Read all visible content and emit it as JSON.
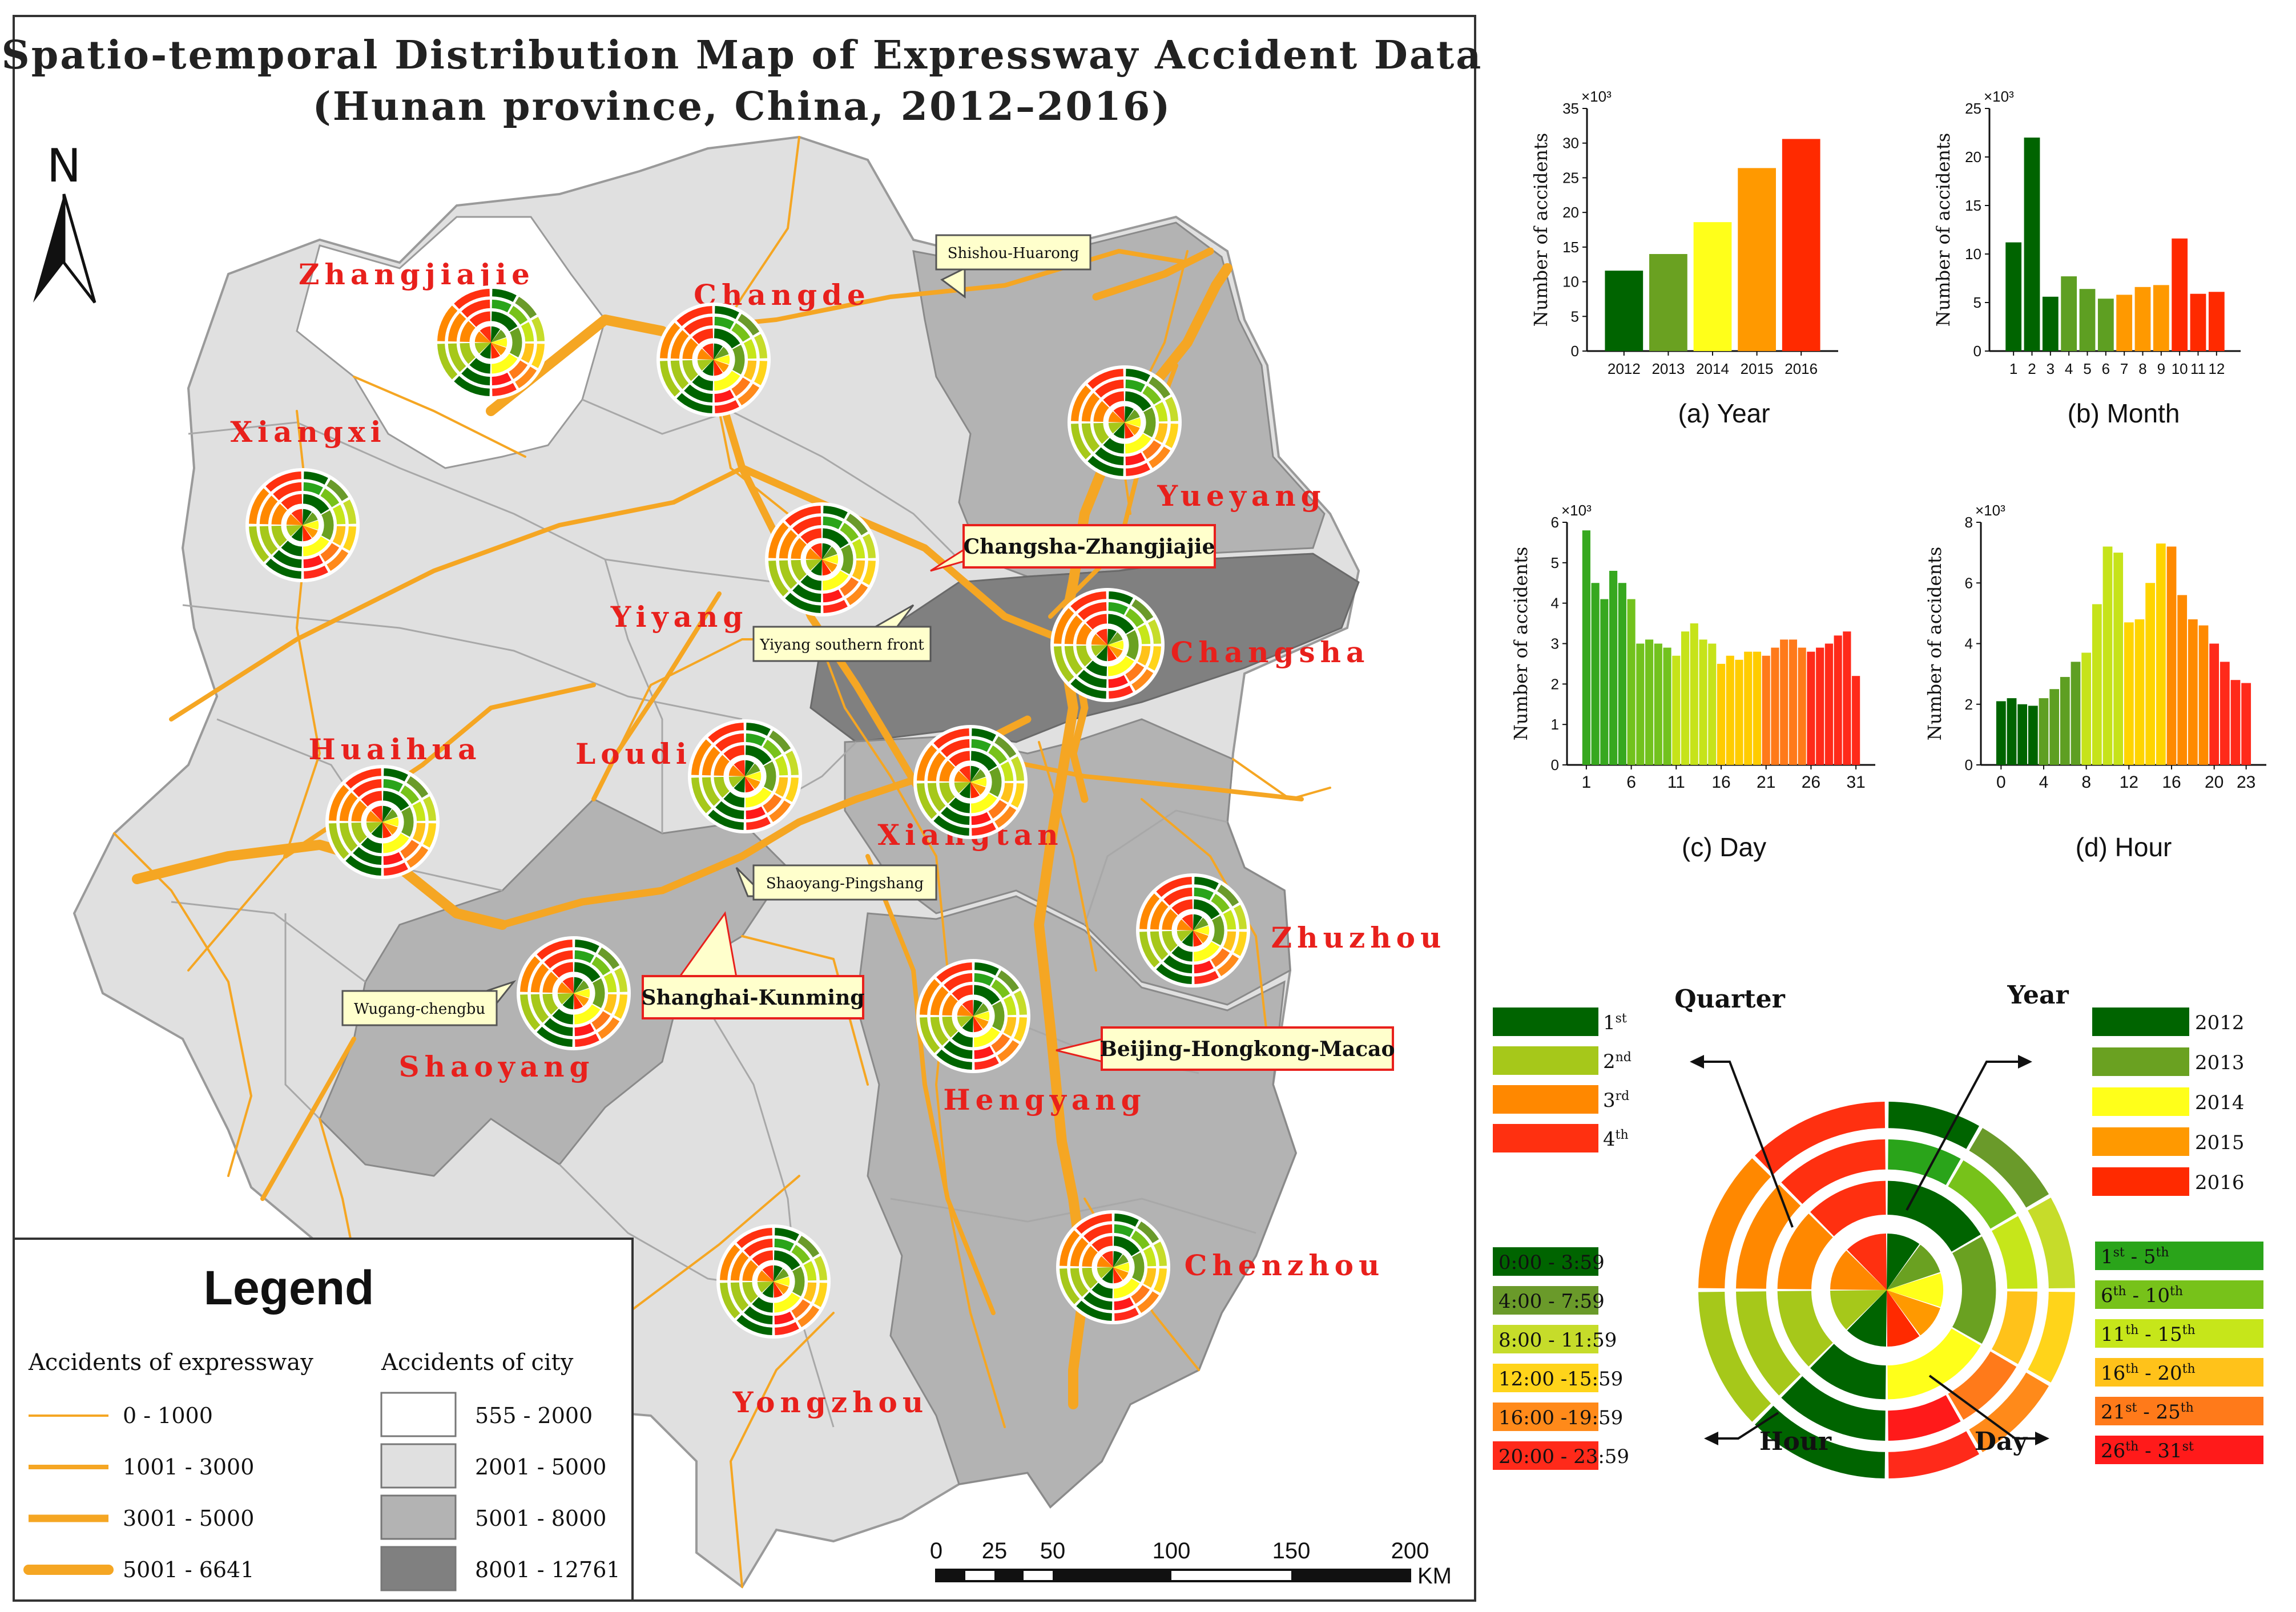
{
  "title": {
    "line1": "Spatio-temporal Distribution Map of Expressway Accident Data",
    "line2": "(Hunan province, China, 2012–2016)"
  },
  "north": "N",
  "cities": [
    {
      "name": "Zhangjiajie"
    },
    {
      "name": "Changde"
    },
    {
      "name": "Yueyang"
    },
    {
      "name": "Xiangxi"
    },
    {
      "name": "Yiyang"
    },
    {
      "name": "Changsha"
    },
    {
      "name": "Huaihua"
    },
    {
      "name": "Loudi"
    },
    {
      "name": "Xiangtan"
    },
    {
      "name": "Zhuzhou"
    },
    {
      "name": "Shaoyang"
    },
    {
      "name": "Hengyang"
    },
    {
      "name": "Chenzhou"
    },
    {
      "name": "Yongzhou"
    }
  ],
  "road_callouts": [
    {
      "label": "Shishou-Huarong",
      "style": "minor"
    },
    {
      "label": "Changsha-Zhangjiajie",
      "style": "major"
    },
    {
      "label": "Yiyang southern front",
      "style": "minor"
    },
    {
      "label": "Shaoyang-Pingshang",
      "style": "minor"
    },
    {
      "label": "Shanghai-Kunming",
      "style": "major"
    },
    {
      "label": "Wugang-chengbu",
      "style": "minor"
    },
    {
      "label": "Beijing-Hongkong-Macao",
      "style": "major"
    }
  ],
  "legend": {
    "title": "Legend",
    "expressway_title": "Accidents of expressway",
    "expressway": [
      {
        "label": "0 - 1000",
        "level": 1
      },
      {
        "label": "1001 - 3000",
        "level": 2
      },
      {
        "label": "3001 - 5000",
        "level": 3
      },
      {
        "label": "5001 - 6641",
        "level": 4
      }
    ],
    "city_title": "Accidents of city",
    "city": [
      {
        "label": "555 - 2000",
        "color": "#ffffff"
      },
      {
        "label": "2001 - 5000",
        "color": "#e0e0e0"
      },
      {
        "label": "5001 - 8000",
        "color": "#b3b3b3"
      },
      {
        "label": "8001 - 12761",
        "color": "#808080"
      }
    ]
  },
  "scale_bar": {
    "ticks": [
      "0",
      "25",
      "50",
      "100",
      "150",
      "200"
    ],
    "unit": "KM"
  },
  "colors": {
    "road": "#f5a623",
    "city_label": "#e8201c",
    "years": [
      "#006400",
      "#6aa121",
      "#ffff1a",
      "#ff9900",
      "#ff2a00"
    ]
  },
  "chart_data": [
    {
      "type": "bar",
      "caption": "(a) Year",
      "ylabel": "Number of accidents",
      "multiplier": "×10³",
      "ylim": [
        0,
        35
      ],
      "yticks": [
        0,
        5,
        10,
        15,
        20,
        25,
        30,
        35
      ],
      "categories": [
        "2012",
        "2013",
        "2014",
        "2015",
        "2016"
      ],
      "xtick_labels": [
        "2012",
        "2013",
        "2014",
        "2015",
        "2016"
      ],
      "values": [
        11.6,
        14.0,
        18.6,
        26.4,
        30.6
      ],
      "colors": [
        "#006400",
        "#6aa121",
        "#ffff1a",
        "#ff9900",
        "#ff2a00"
      ]
    },
    {
      "type": "bar",
      "caption": "(b) Month",
      "ylabel": "Number of accidents",
      "multiplier": "×10³",
      "ylim": [
        0,
        25
      ],
      "yticks": [
        0,
        5,
        10,
        15,
        20,
        25
      ],
      "categories": [
        "1",
        "2",
        "3",
        "4",
        "5",
        "6",
        "7",
        "8",
        "9",
        "10",
        "11",
        "12"
      ],
      "xtick_labels": [
        "1",
        "2",
        "3",
        "4",
        "5",
        "6",
        "7",
        "8",
        "9",
        "10",
        "11",
        "12"
      ],
      "values": [
        11.2,
        22.0,
        5.6,
        7.7,
        6.4,
        5.4,
        5.8,
        6.6,
        6.8,
        11.6,
        5.9,
        6.1
      ],
      "colors": [
        "#006400",
        "#006400",
        "#006400",
        "#5e9f22",
        "#5e9f22",
        "#5e9f22",
        "#ff9900",
        "#ff9900",
        "#ff9900",
        "#ff2a00",
        "#ff2a00",
        "#ff2a00"
      ]
    },
    {
      "type": "bar",
      "caption": "(c) Day",
      "ylabel": "Number of accidents",
      "multiplier": "×10³",
      "ylim": [
        0,
        6
      ],
      "yticks": [
        0,
        1,
        2,
        3,
        4,
        5,
        6
      ],
      "categories": [
        "1",
        "2",
        "3",
        "4",
        "5",
        "6",
        "7",
        "8",
        "9",
        "10",
        "11",
        "12",
        "13",
        "14",
        "15",
        "16",
        "17",
        "18",
        "19",
        "20",
        "21",
        "22",
        "23",
        "24",
        "25",
        "26",
        "27",
        "28",
        "29",
        "30",
        "31"
      ],
      "xtick_labels": [
        "1",
        "6",
        "11",
        "16",
        "21",
        "26",
        "31"
      ],
      "values": [
        5.8,
        4.5,
        4.1,
        4.8,
        4.5,
        4.1,
        3.0,
        3.1,
        3.0,
        2.9,
        2.7,
        3.3,
        3.5,
        3.1,
        3.0,
        2.5,
        2.7,
        2.6,
        2.8,
        2.8,
        2.7,
        2.9,
        3.1,
        3.1,
        2.9,
        2.8,
        2.9,
        3.0,
        3.2,
        3.3,
        2.2
      ],
      "colors": [
        "#37a81f",
        "#37a81f",
        "#37a81f",
        "#37a81f",
        "#37a81f",
        "#72c21d",
        "#72c21d",
        "#72c21d",
        "#72c21d",
        "#72c21d",
        "#c6e31a",
        "#c6e31a",
        "#c6e31a",
        "#c6e31a",
        "#c6e31a",
        "#ffcc00",
        "#ffcc00",
        "#ffcc00",
        "#ffcc00",
        "#ffcc00",
        "#ff7a1a",
        "#ff7a1a",
        "#ff7a1a",
        "#ff7a1a",
        "#ff7a1a",
        "#ff2a1a",
        "#ff2a1a",
        "#ff2a1a",
        "#ff2a1a",
        "#ff2a1a",
        "#ff2a1a"
      ]
    },
    {
      "type": "bar",
      "caption": "(d) Hour",
      "ylabel": "Number of accidents",
      "multiplier": "×10³",
      "ylim": [
        0,
        8
      ],
      "yticks": [
        0,
        2,
        4,
        6,
        8
      ],
      "categories": [
        "0",
        "1",
        "2",
        "3",
        "4",
        "5",
        "6",
        "7",
        "8",
        "9",
        "10",
        "11",
        "12",
        "13",
        "14",
        "15",
        "16",
        "17",
        "18",
        "19",
        "20",
        "21",
        "22",
        "23"
      ],
      "xtick_labels": [
        "0",
        "4",
        "8",
        "12",
        "16",
        "20",
        "23"
      ],
      "values": [
        2.1,
        2.2,
        2.0,
        1.95,
        2.2,
        2.5,
        2.9,
        3.4,
        3.7,
        5.3,
        7.2,
        7.0,
        4.7,
        4.8,
        6.0,
        7.3,
        7.2,
        5.6,
        4.8,
        4.6,
        4.0,
        3.4,
        2.8,
        2.7
      ],
      "colors": [
        "#006400",
        "#006400",
        "#006400",
        "#006400",
        "#5e9f22",
        "#5e9f22",
        "#5e9f22",
        "#5e9f22",
        "#c6e31a",
        "#c6e31a",
        "#c6e31a",
        "#c6e31a",
        "#ffd400",
        "#ffd400",
        "#ffd400",
        "#ffd400",
        "#ff8a00",
        "#ff8a00",
        "#ff8a00",
        "#ff8a00",
        "#ff2a1a",
        "#ff2a1a",
        "#ff2a1a",
        "#ff2a1a"
      ]
    }
  ],
  "ring_legend": {
    "quarter_title": "Quarter",
    "year_title": "Year",
    "hour_title": "Hour",
    "day_title": "Day",
    "quarters": [
      {
        "label": "1st",
        "color": "#006400"
      },
      {
        "label": "2nd",
        "color": "#a6c81a"
      },
      {
        "label": "3rd",
        "color": "#ff8800"
      },
      {
        "label": "4th",
        "color": "#ff3010"
      }
    ],
    "years": [
      {
        "label": "2012",
        "color": "#006400"
      },
      {
        "label": "2013",
        "color": "#6aa121"
      },
      {
        "label": "2014",
        "color": "#ffff1a"
      },
      {
        "label": "2015",
        "color": "#ff9900"
      },
      {
        "label": "2016",
        "color": "#ff2a00"
      }
    ],
    "hours": [
      {
        "label": "0:00 - 3:59",
        "color": "#006400"
      },
      {
        "label": "4:00 - 7:59",
        "color": "#6a9a2a"
      },
      {
        "label": "8:00 - 11:59",
        "color": "#c6dc2a"
      },
      {
        "label": "12:00 -15:59",
        "color": "#ffd41a"
      },
      {
        "label": "16:00 -19:59",
        "color": "#ff8a1a"
      },
      {
        "label": "20:00 - 23:59",
        "color": "#ff2a1a"
      }
    ],
    "days": [
      {
        "label": "1st - 5th",
        "color": "#2aa41a"
      },
      {
        "label": "6th - 10th",
        "color": "#77c21a"
      },
      {
        "label": "11th - 15th",
        "color": "#c6e61a"
      },
      {
        "label": "16th - 20th",
        "color": "#ffc21a"
      },
      {
        "label": "21st - 25th",
        "color": "#ff7a1a"
      },
      {
        "label": "26th - 31st",
        "color": "#ff1a1a"
      }
    ]
  }
}
